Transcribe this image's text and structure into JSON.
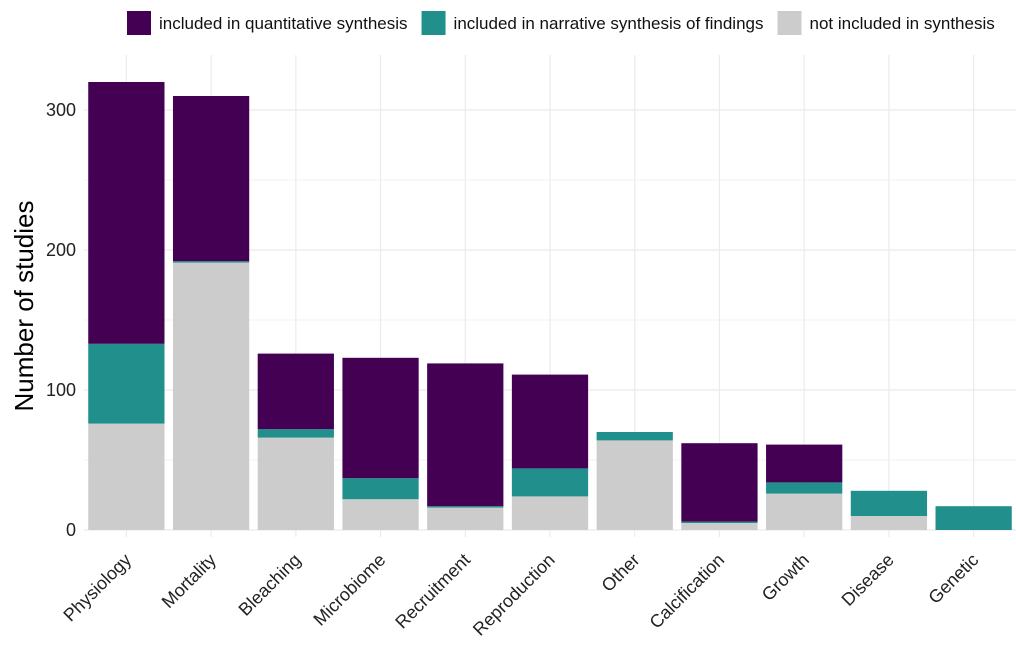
{
  "chart_data": {
    "type": "bar",
    "stacked": true,
    "title": "",
    "xlabel": "",
    "ylabel": "Number of studies",
    "categories": [
      "Physiology",
      "Mortality",
      "Bleaching",
      "Microbiome",
      "Recruitment",
      "Reproduction",
      "Other",
      "Calcification",
      "Growth",
      "Disease",
      "Genetic"
    ],
    "ylim": [
      0,
      330
    ],
    "yticks": [
      0,
      100,
      200,
      300
    ],
    "grid": true,
    "legend_position": "top-right",
    "series": [
      {
        "name": "not included in synthesis",
        "color": "#cccccc",
        "values": [
          76,
          191,
          66,
          22,
          16,
          24,
          64,
          5,
          26,
          10,
          0
        ]
      },
      {
        "name": "included in narrative synthesis of findings",
        "color": "#21908c",
        "values": [
          57,
          1,
          6,
          15,
          1,
          20,
          6,
          1,
          8,
          18,
          17
        ]
      },
      {
        "name": "included in quantitative synthesis",
        "color": "#440154",
        "values": [
          187,
          118,
          54,
          86,
          102,
          67,
          0,
          56,
          27,
          0,
          0
        ]
      }
    ],
    "legend_order": [
      2,
      1,
      0
    ]
  }
}
